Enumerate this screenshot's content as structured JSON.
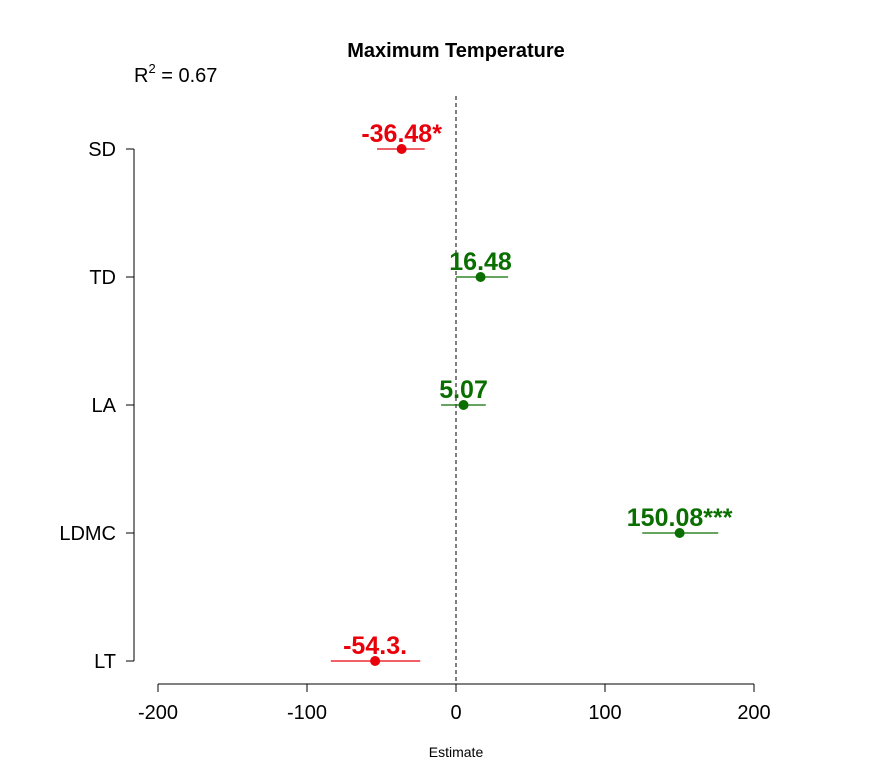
{
  "chart_data": {
    "type": "scatter",
    "title": "Maximum Temperature",
    "annotation": {
      "prefix": "R",
      "superscript": "2",
      "suffix": " = 0.67"
    },
    "xlabel": "Estimate",
    "ylabel": "",
    "xlim": [
      -200,
      200
    ],
    "xticks": [
      -200,
      -100,
      0,
      100,
      200
    ],
    "xtick_labels": [
      "-200",
      "-100",
      "0",
      "100",
      "200"
    ],
    "reference_line": {
      "x": 0,
      "style": "dashed"
    },
    "categories": [
      "SD",
      "TD",
      "LA",
      "LDMC",
      "LT"
    ],
    "points": [
      {
        "label": "SD",
        "estimate": -36.48,
        "ci": [
          -53,
          -21
        ],
        "text": "-36.48*",
        "color": "#e8000b"
      },
      {
        "label": "TD",
        "estimate": 16.48,
        "ci": [
          0,
          35
        ],
        "text": "16.48",
        "color": "#0a6f00"
      },
      {
        "label": "LA",
        "estimate": 5.07,
        "ci": [
          -10,
          20
        ],
        "text": "5.07",
        "color": "#0a6f00"
      },
      {
        "label": "LDMC",
        "estimate": 150.08,
        "ci": [
          125,
          176
        ],
        "text": "150.08***",
        "color": "#0a6f00"
      },
      {
        "label": "LT",
        "estimate": -54.3,
        "ci": [
          -84,
          -24
        ],
        "text": "-54.3.",
        "color": "#e8000b"
      }
    ],
    "grid": false,
    "legend": "none"
  }
}
